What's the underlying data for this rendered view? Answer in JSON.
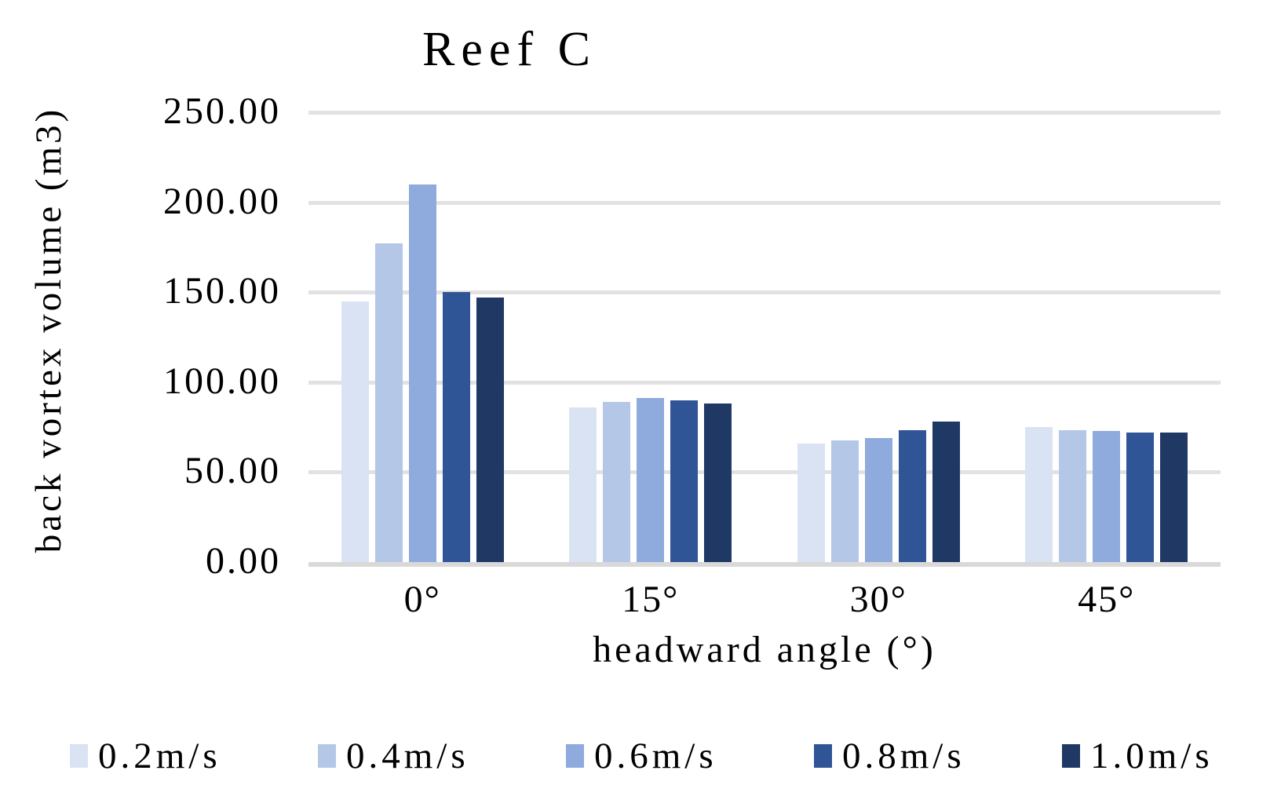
{
  "chart_data": {
    "type": "bar",
    "title": "Reef C",
    "xlabel": "headward angle (°)",
    "ylabel": "back vortex volume (m3)",
    "categories": [
      "0°",
      "15°",
      "30°",
      "45°"
    ],
    "series": [
      {
        "name": "0.2m/s",
        "color": "#DAE3F3",
        "values": [
          145,
          86,
          66,
          75
        ]
      },
      {
        "name": "0.4m/s",
        "color": "#B4C7E7",
        "values": [
          177,
          89,
          67.5,
          73.5
        ]
      },
      {
        "name": "0.6m/s",
        "color": "#8FAADC",
        "values": [
          210,
          91,
          69,
          73
        ]
      },
      {
        "name": "0.8m/s",
        "color": "#2F5597",
        "values": [
          150,
          90,
          73.5,
          72
        ]
      },
      {
        "name": "1.0m/s",
        "color": "#1F3864",
        "values": [
          147,
          88,
          78,
          72
        ]
      }
    ],
    "y_ticks": [
      "250.00",
      "200.00",
      "150.00",
      "100.00",
      "50.00",
      "0.00"
    ],
    "ylim": [
      0,
      250
    ],
    "grid": "horizontal",
    "legend_position": "bottom",
    "gridline_color": "#E2E2E2",
    "axis_line_color": "#D9D9D9",
    "background_color": "#FFFFFF"
  }
}
